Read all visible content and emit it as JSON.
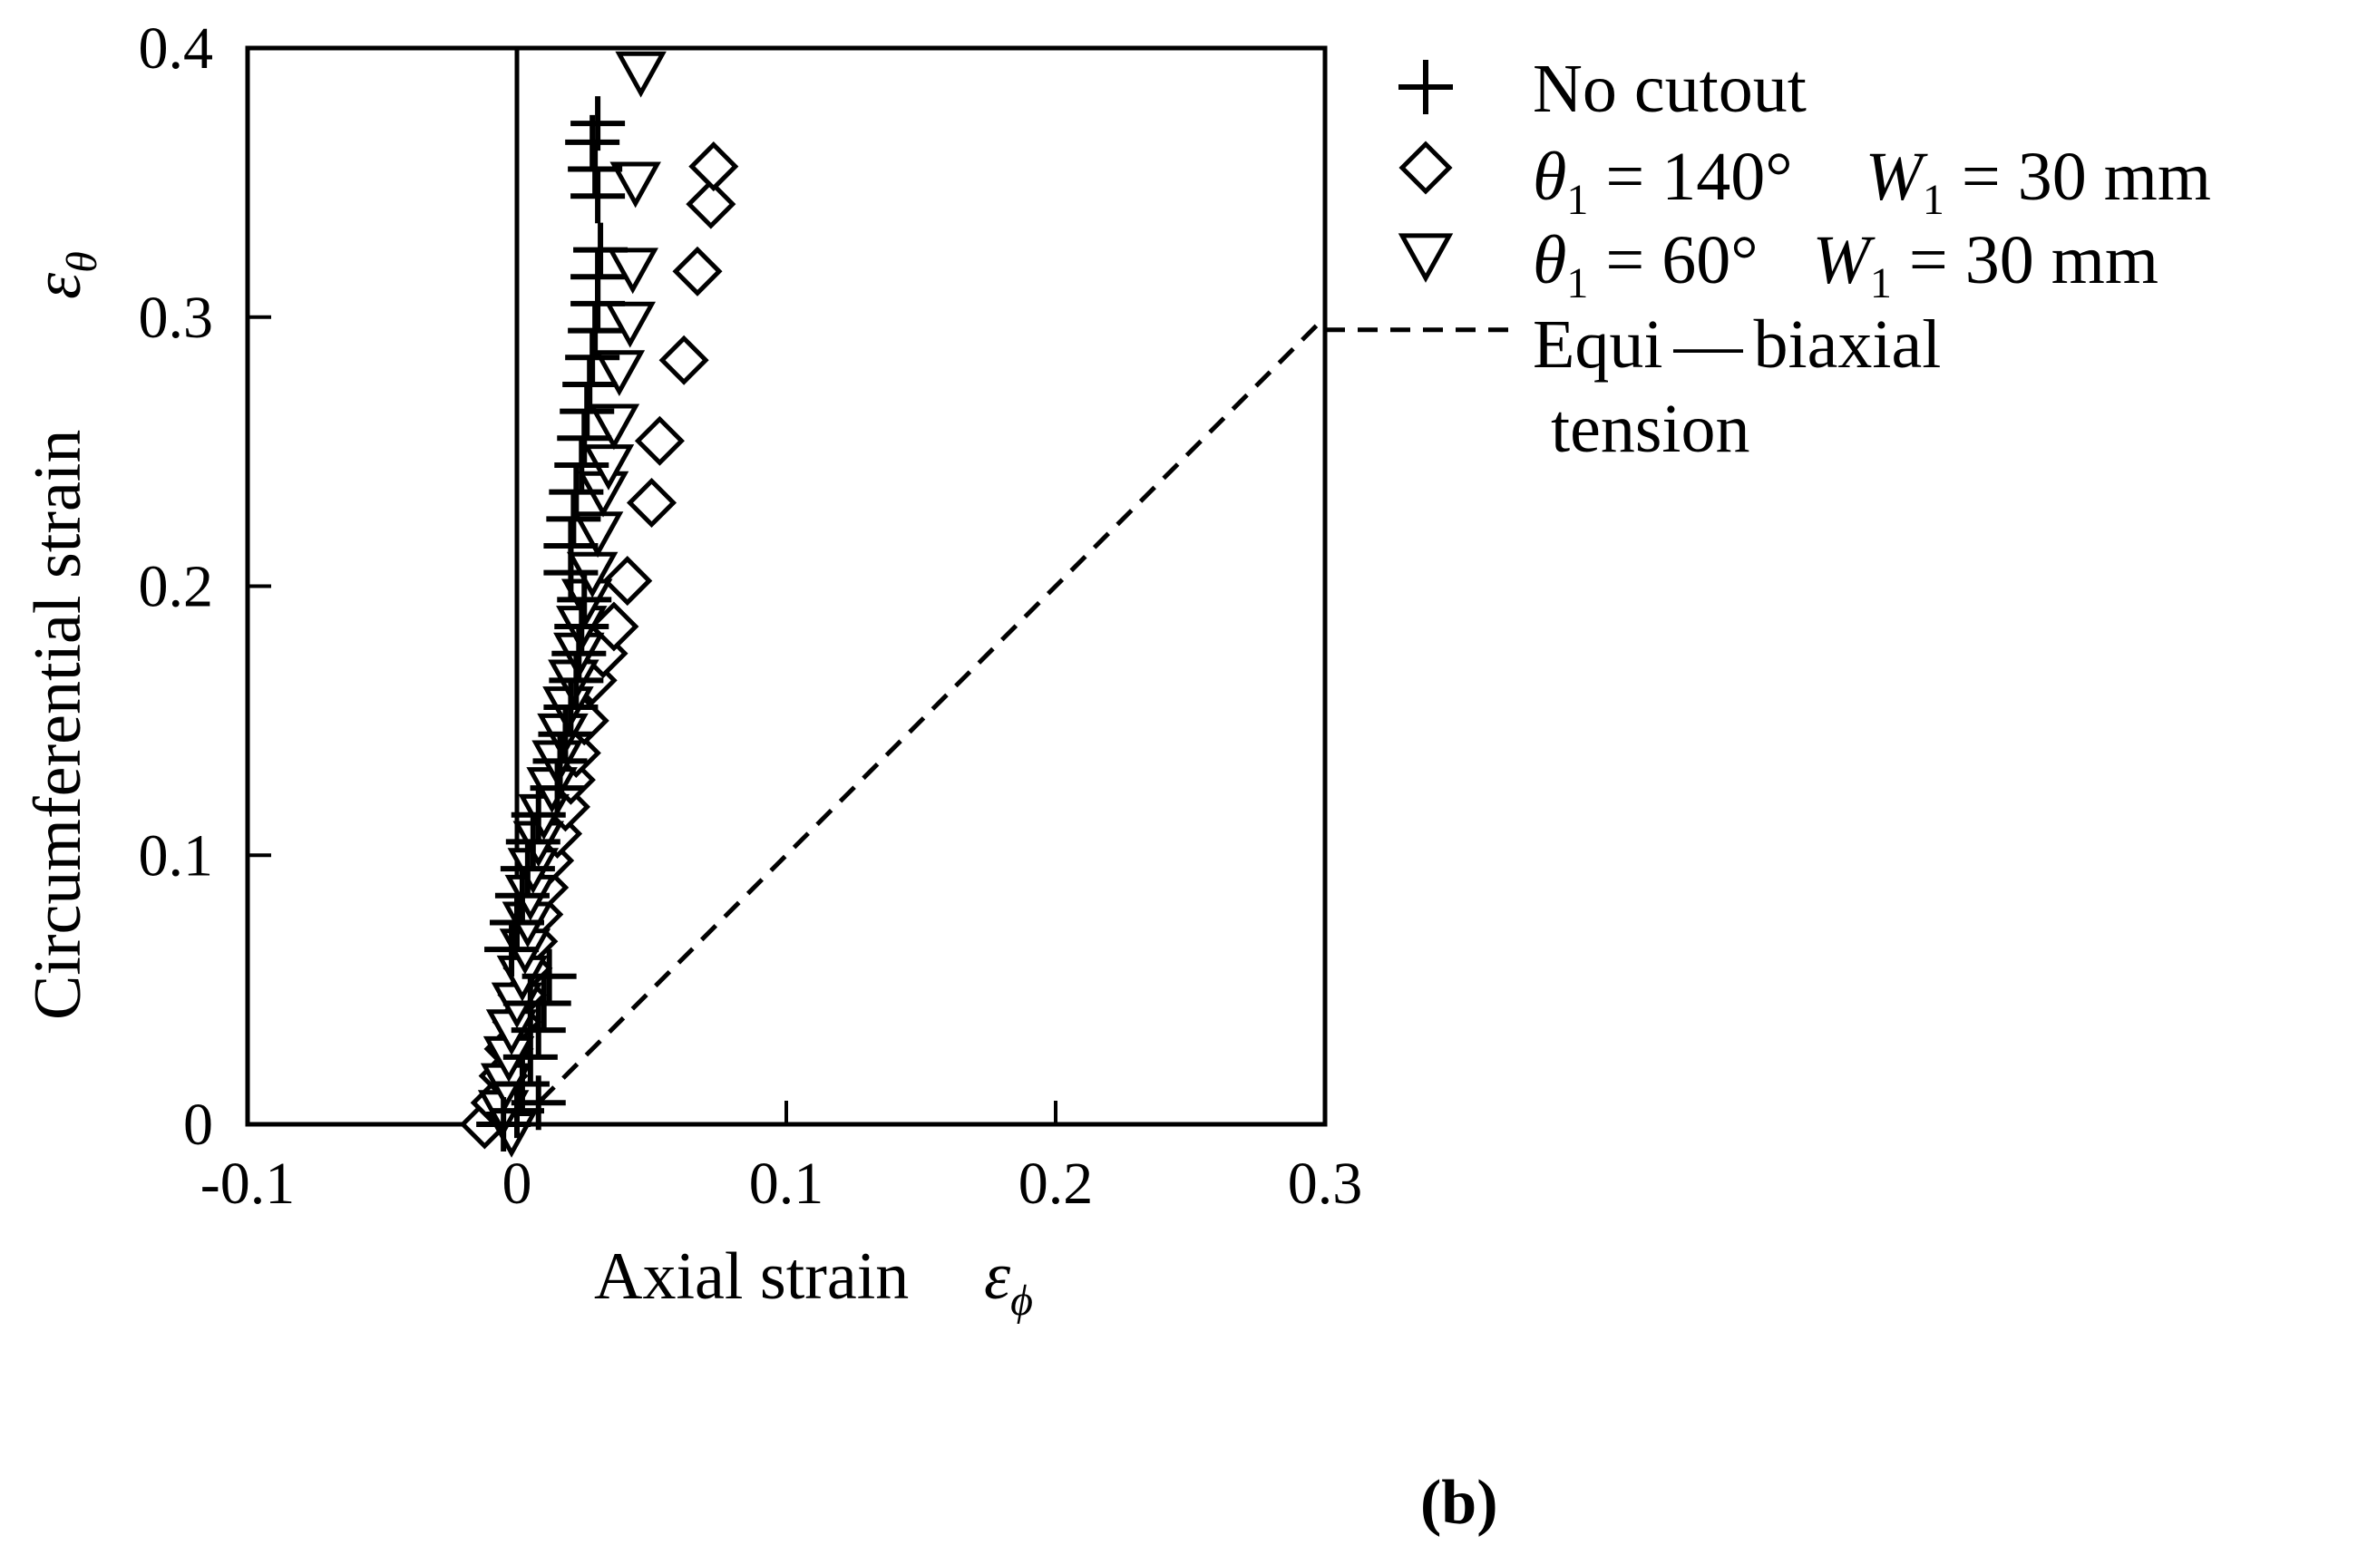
{
  "chart_data": {
    "type": "scatter",
    "panel_label": "(b)",
    "xlabel": "Axial strain",
    "xlabel_symbol": "ε",
    "xlabel_subscript": "ϕ",
    "ylabel": "Circumferential strain",
    "ylabel_symbol": "ε",
    "ylabel_subscript": "θ",
    "xlim": [
      -0.1,
      0.3
    ],
    "ylim": [
      0,
      0.4
    ],
    "xticks": [
      "-0.1",
      "0",
      "0.1",
      "0.2",
      "0.3"
    ],
    "yticks": [
      "0",
      "0.1",
      "0.2",
      "0.3",
      "0.4"
    ],
    "xtick_values": [
      -0.1,
      0,
      0.1,
      0.2,
      0.3
    ],
    "ytick_values": [
      0,
      0.1,
      0.2,
      0.3,
      0.4
    ],
    "grid": false,
    "legend_position": "outside-right",
    "vertical_reference_line_x": 0,
    "reference_line": {
      "name_line1": "Equi",
      "name_joiner": "—",
      "name_line1b": "biaxial",
      "name_line2": "tension",
      "style": "dashed",
      "points": [
        [
          0,
          0
        ],
        [
          0.3,
          0.3
        ]
      ]
    },
    "series": [
      {
        "name": "No cutout",
        "marker": "plus",
        "points": [
          [
            -0.005,
            0.0
          ],
          [
            0.0,
            0.005
          ],
          [
            0.002,
            0.015
          ],
          [
            0.005,
            0.025
          ],
          [
            0.008,
            0.035
          ],
          [
            0.01,
            0.045
          ],
          [
            0.012,
            0.055
          ],
          [
            -0.002,
            0.065
          ],
          [
            0.0,
            0.075
          ],
          [
            0.002,
            0.085
          ],
          [
            0.004,
            0.095
          ],
          [
            0.006,
            0.105
          ],
          [
            0.008,
            0.115
          ],
          [
            0.015,
            0.125
          ],
          [
            0.016,
            0.135
          ],
          [
            0.018,
            0.145
          ],
          [
            0.02,
            0.155
          ],
          [
            0.022,
            0.165
          ],
          [
            0.023,
            0.175
          ],
          [
            0.024,
            0.185
          ],
          [
            0.025,
            0.195
          ],
          [
            0.02,
            0.205
          ],
          [
            0.02,
            0.215
          ],
          [
            0.021,
            0.225
          ],
          [
            0.022,
            0.235
          ],
          [
            0.024,
            0.245
          ],
          [
            0.025,
            0.255
          ],
          [
            0.026,
            0.265
          ],
          [
            0.027,
            0.275
          ],
          [
            0.028,
            0.285
          ],
          [
            0.029,
            0.295
          ],
          [
            0.03,
            0.305
          ],
          [
            0.03,
            0.315
          ],
          [
            0.031,
            0.325
          ],
          [
            0.03,
            0.345
          ],
          [
            0.029,
            0.355
          ],
          [
            0.028,
            0.365
          ],
          [
            0.03,
            0.372
          ],
          [
            0.005,
            0.045
          ],
          [
            0.008,
            0.008
          ]
        ]
      },
      {
        "name": "θ1 = 140°  W1 = 30 mm",
        "name_theta": "θ",
        "name_theta_sub": "1",
        "name_theta_value": " = 140°",
        "name_w": "W",
        "name_w_sub": "1",
        "name_w_value": " = 30 mm",
        "marker": "diamond",
        "points": [
          [
            -0.012,
            0.0
          ],
          [
            -0.008,
            0.008
          ],
          [
            -0.005,
            0.018
          ],
          [
            -0.003,
            0.028
          ],
          [
            0.0,
            0.038
          ],
          [
            0.002,
            0.048
          ],
          [
            0.004,
            0.058
          ],
          [
            0.006,
            0.068
          ],
          [
            0.008,
            0.078
          ],
          [
            0.01,
            0.088
          ],
          [
            0.012,
            0.098
          ],
          [
            0.015,
            0.108
          ],
          [
            0.018,
            0.118
          ],
          [
            0.02,
            0.128
          ],
          [
            0.022,
            0.138
          ],
          [
            0.025,
            0.15
          ],
          [
            0.028,
            0.165
          ],
          [
            0.032,
            0.175
          ],
          [
            0.036,
            0.185
          ],
          [
            0.041,
            0.202
          ],
          [
            0.05,
            0.231
          ],
          [
            0.053,
            0.254
          ],
          [
            0.062,
            0.284
          ],
          [
            0.067,
            0.317
          ],
          [
            0.072,
            0.342
          ],
          [
            0.073,
            0.356
          ]
        ]
      },
      {
        "name": "θ1 = 60°  W1 = 30 mm",
        "name_theta": "θ",
        "name_theta_sub": "1",
        "name_theta_value": " = 60°",
        "name_w": "W",
        "name_w_sub": "1",
        "name_w_value": " = 30 mm",
        "marker": "triangle-down",
        "points": [
          [
            -0.002,
            -0.003
          ],
          [
            -0.005,
            0.005
          ],
          [
            -0.004,
            0.015
          ],
          [
            -0.003,
            0.025
          ],
          [
            -0.002,
            0.035
          ],
          [
            0.0,
            0.045
          ],
          [
            0.002,
            0.055
          ],
          [
            0.003,
            0.065
          ],
          [
            0.004,
            0.075
          ],
          [
            0.005,
            0.085
          ],
          [
            0.006,
            0.095
          ],
          [
            0.008,
            0.105
          ],
          [
            0.01,
            0.115
          ],
          [
            0.013,
            0.125
          ],
          [
            0.015,
            0.135
          ],
          [
            0.017,
            0.145
          ],
          [
            0.019,
            0.155
          ],
          [
            0.021,
            0.165
          ],
          [
            0.023,
            0.175
          ],
          [
            0.024,
            0.185
          ],
          [
            0.026,
            0.195
          ],
          [
            0.028,
            0.205
          ],
          [
            0.03,
            0.22
          ],
          [
            0.032,
            0.235
          ],
          [
            0.034,
            0.245
          ],
          [
            0.036,
            0.26
          ],
          [
            0.038,
            0.28
          ],
          [
            0.042,
            0.298
          ],
          [
            0.043,
            0.318
          ],
          [
            0.044,
            0.35
          ],
          [
            0.046,
            0.391
          ]
        ]
      }
    ]
  }
}
